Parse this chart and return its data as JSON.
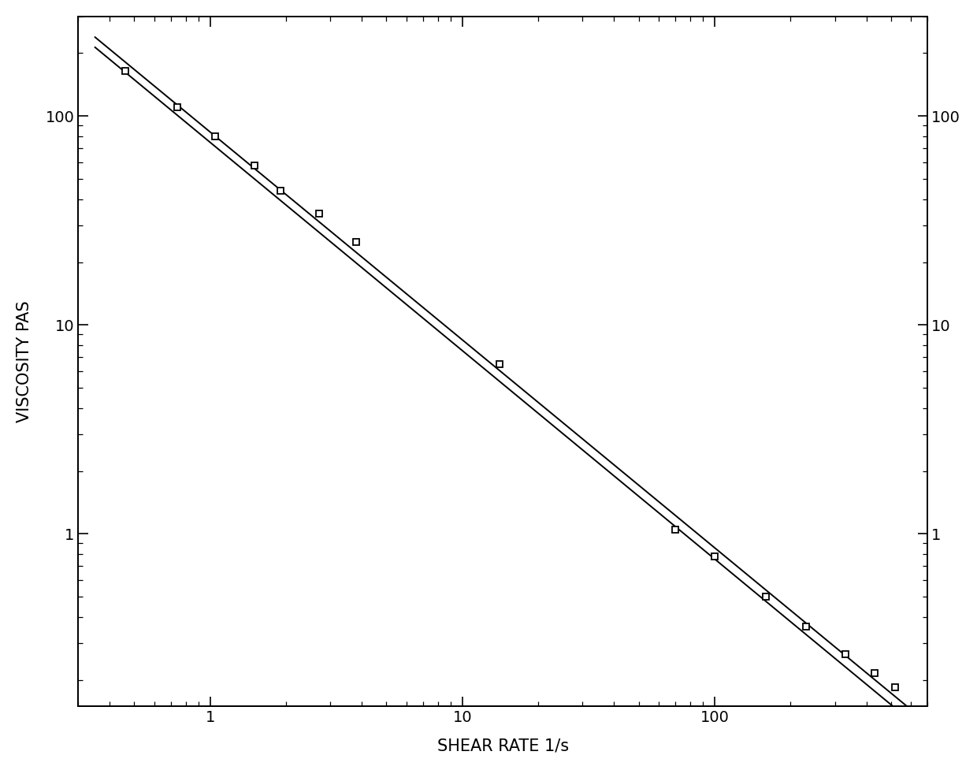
{
  "title": "",
  "xlabel": "SHEAR RATE 1/s",
  "ylabel": "VISCOSITY PAS",
  "xlim": [
    0.3,
    700
  ],
  "ylim": [
    0.15,
    300
  ],
  "background_color": "#ffffff",
  "line_color": "#000000",
  "marker": "s",
  "markersize": 6,
  "linewidth": 1.4,
  "series1_x": [
    0.46,
    0.74,
    1.05,
    1.5,
    1.9,
    2.7,
    3.8,
    14,
    70,
    100,
    160,
    230,
    330,
    430,
    520
  ],
  "series1_y": [
    165,
    110,
    80,
    58,
    44,
    34,
    25,
    6.5,
    1.05,
    0.78,
    0.5,
    0.36,
    0.265,
    0.215,
    0.185
  ],
  "series2_x": [
    0.46,
    0.74,
    1.05,
    1.5,
    1.9,
    2.7,
    3.8,
    14,
    70,
    100,
    160,
    230,
    330,
    430,
    520
  ],
  "series2_y": [
    152,
    100,
    73,
    52,
    39,
    30,
    21,
    5.5,
    0.93,
    0.7,
    0.44,
    0.32,
    0.235,
    0.19,
    0.165
  ],
  "xlabel_fontsize": 15,
  "ylabel_fontsize": 15,
  "tick_labelsize": 14,
  "font_family": "DejaVu Sans"
}
